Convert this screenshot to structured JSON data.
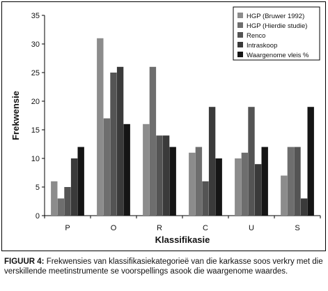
{
  "chart_data": {
    "type": "bar",
    "xlabel": "Klassifikasie",
    "ylabel": "Frekwensie",
    "ylim": [
      0,
      35
    ],
    "yticks": [
      0,
      5,
      10,
      15,
      20,
      25,
      30,
      35
    ],
    "grid": false,
    "legend_position": "top-right",
    "categories": [
      "P",
      "O",
      "R",
      "C",
      "U",
      "S"
    ],
    "series": [
      {
        "name": "HGP (Bruwer 1992)",
        "color": "#8c8c8c",
        "values": [
          6,
          31,
          16,
          11,
          10,
          7
        ]
      },
      {
        "name": "HGP (Hierdie studie)",
        "color": "#6e6e6e",
        "values": [
          3,
          17,
          26,
          12,
          11,
          12
        ]
      },
      {
        "name": "Renco",
        "color": "#545454",
        "values": [
          5,
          25,
          14,
          6,
          19,
          12
        ]
      },
      {
        "name": "Intraskoop",
        "color": "#3a3a3a",
        "values": [
          10,
          26,
          14,
          19,
          9,
          3
        ]
      },
      {
        "name": "Waargenome vleis %",
        "color": "#151515",
        "values": [
          12,
          16,
          12,
          10,
          12,
          19
        ]
      }
    ]
  },
  "caption": {
    "label": "FIGUUR 4:",
    "text": "Frekwensies van klassifikasiekategorieë van die karkasse soos verkry met die verskillende meetinstrumente se voorspellings asook die waargenome waardes."
  }
}
